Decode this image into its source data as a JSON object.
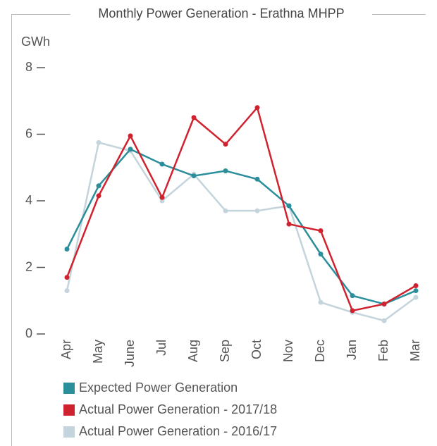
{
  "chart_data": {
    "type": "line",
    "title": "Monthly Power Generation - Erathna MHPP",
    "y_label": "GWh",
    "categories": [
      "Apr",
      "May",
      "June",
      "Jul",
      "Aug",
      "Sep",
      "Oct",
      "Nov",
      "Dec",
      "Jan",
      "Feb",
      "Mar"
    ],
    "series": [
      {
        "name": "Actual Power Generation - 2016/17",
        "color": "#c3d4dc",
        "values": [
          1.3,
          5.75,
          5.5,
          4.0,
          4.8,
          3.7,
          3.7,
          3.85,
          0.95,
          0.65,
          0.4,
          1.1
        ]
      },
      {
        "name": "Expected Power Generation",
        "color": "#2b8e9b",
        "values": [
          2.55,
          4.45,
          5.55,
          5.1,
          4.75,
          4.9,
          4.65,
          3.85,
          2.4,
          1.15,
          0.9,
          1.3
        ]
      },
      {
        "name": "Actual Power Generation - 2017/18",
        "color": "#d0222e",
        "values": [
          1.7,
          4.15,
          5.95,
          4.1,
          6.5,
          5.7,
          6.8,
          3.3,
          3.1,
          0.7,
          0.9,
          1.45
        ]
      }
    ],
    "legend_order": [
      1,
      2,
      0
    ],
    "ylim": [
      0,
      8
    ],
    "yticks": [
      0,
      2,
      4,
      6,
      8
    ]
  }
}
